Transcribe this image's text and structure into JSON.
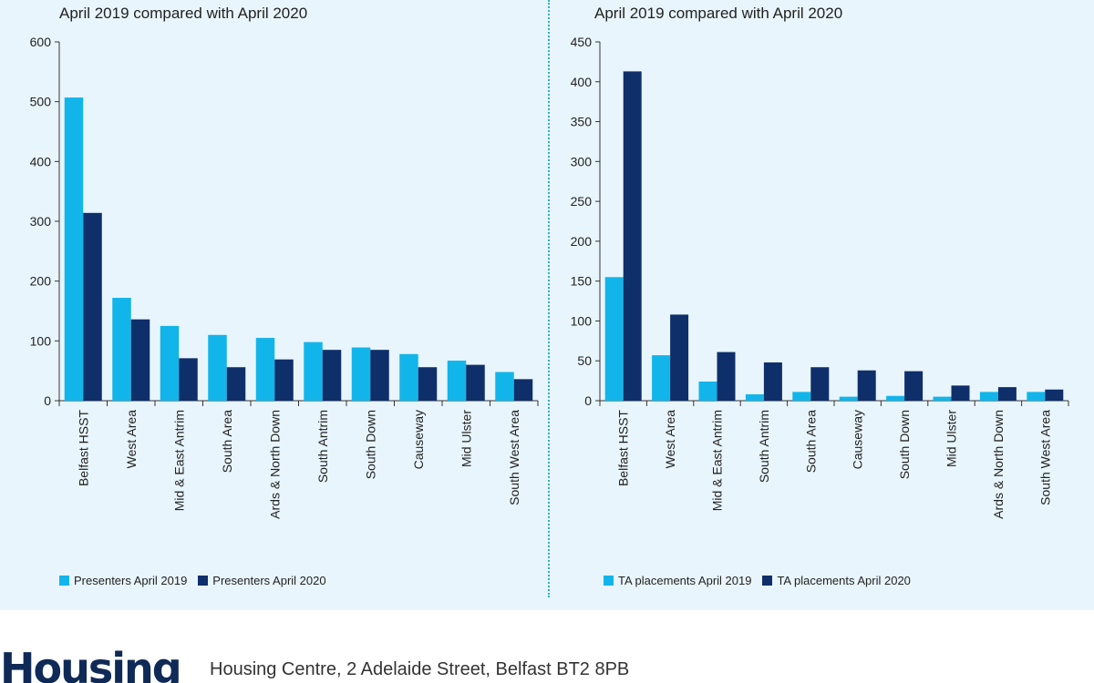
{
  "colors": {
    "series2019": "#12b5ea",
    "series2020": "#0f2f6b",
    "divider": "#2bb3c0",
    "panel": "#e8f5fc"
  },
  "footer": {
    "logo_text": "Housing",
    "address": "Housing Centre, 2 Adelaide Street, Belfast BT2 8PB"
  },
  "chart_data": [
    {
      "type": "bar",
      "title": "April 2019 compared with April 2020",
      "categories": [
        "Belfast HSST",
        "West Area",
        "Mid & East Antrim",
        "South Area",
        "Ards & North Down",
        "South Antrim",
        "South Down",
        "Causeway",
        "Mid Ulster",
        "South West Area"
      ],
      "series": [
        {
          "name": "Presenters April 2019",
          "values": [
            507,
            172,
            125,
            110,
            105,
            98,
            89,
            78,
            67,
            48
          ]
        },
        {
          "name": "Presenters April 2020",
          "values": [
            314,
            136,
            71,
            56,
            69,
            85,
            85,
            56,
            60,
            36
          ]
        }
      ],
      "ylim": [
        0,
        600
      ],
      "yticks": [
        0,
        100,
        200,
        300,
        400,
        500,
        600
      ],
      "legend": "bottom-left",
      "grid": false
    },
    {
      "type": "bar",
      "title": "April 2019 compared with April 2020",
      "categories": [
        "Belfast HSST",
        "West Area",
        "Mid & East Antrim",
        "South Antrim",
        "South Area",
        "Causeway",
        "South Down",
        "Mid Ulster",
        "Ards & North Down",
        "South West Area"
      ],
      "series": [
        {
          "name": "TA placements April 2019",
          "values": [
            155,
            57,
            24,
            8,
            11,
            5,
            6,
            5,
            11,
            11
          ]
        },
        {
          "name": "TA placements April 2020",
          "values": [
            413,
            108,
            61,
            48,
            42,
            38,
            37,
            19,
            17,
            14
          ]
        }
      ],
      "ylim": [
        0,
        450
      ],
      "yticks": [
        0,
        50,
        100,
        150,
        200,
        250,
        300,
        350,
        400,
        450
      ],
      "legend": "bottom-left",
      "grid": false
    }
  ]
}
